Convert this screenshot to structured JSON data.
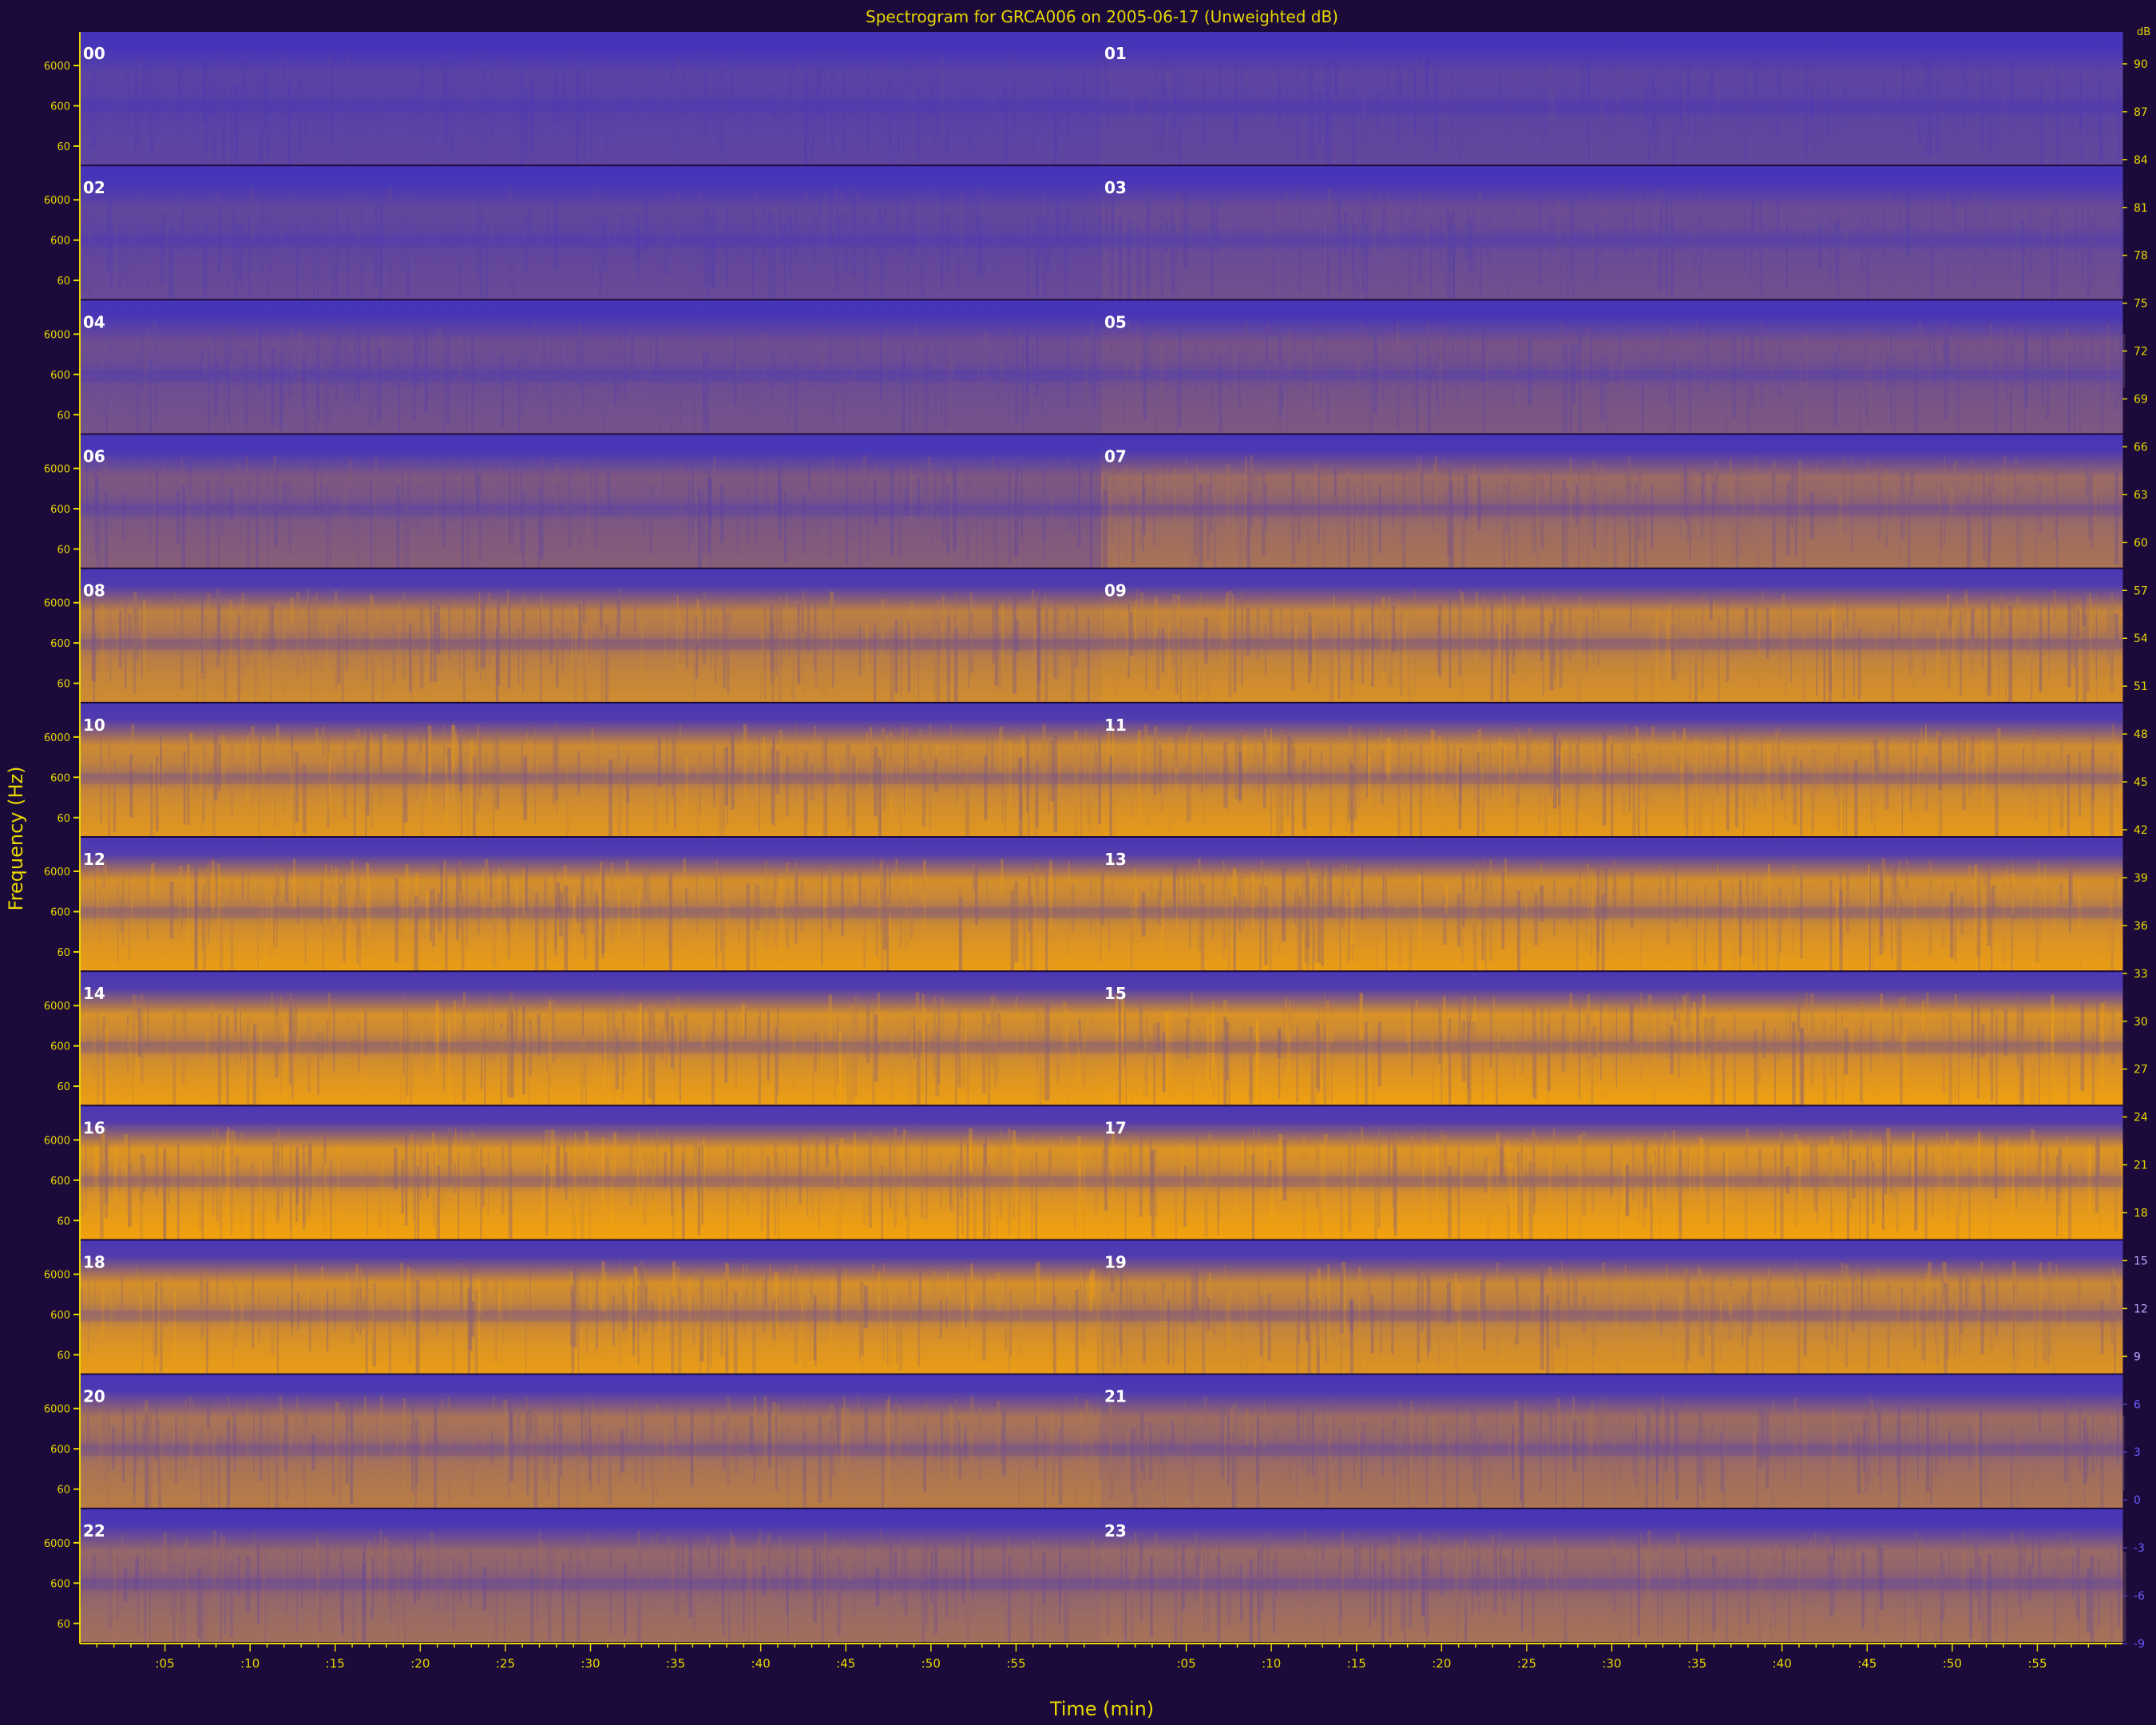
{
  "chart_data": {
    "type": "heatmap",
    "title": "Spectrogram for GRCA006 on 2005-06-17 (Unweighted dB)",
    "xlabel": "Time (min)",
    "ylabel": "Frequency (Hz)",
    "colorbar_label": "dB",
    "panel_labels": [
      "00",
      "01",
      "02",
      "03",
      "04",
      "05",
      "06",
      "07",
      "08",
      "09",
      "10",
      "11",
      "12",
      "13",
      "14",
      "15",
      "16",
      "17",
      "18",
      "19",
      "20",
      "21",
      "22",
      "23"
    ],
    "y_tick_labels": [
      "6000",
      "600",
      "60"
    ],
    "x_tick_labels": [
      ":05",
      ":10",
      ":15",
      ":20",
      ":25",
      ":30",
      ":35",
      ":40",
      ":45",
      ":50",
      ":55"
    ],
    "colorbar_ticks": [
      90,
      87,
      84,
      81,
      78,
      75,
      72,
      69,
      66,
      63,
      60,
      57,
      54,
      51,
      48,
      45,
      42,
      39,
      36,
      33,
      30,
      27,
      24,
      21,
      18,
      15,
      12,
      9,
      6,
      3,
      0,
      -3,
      -6,
      -9
    ],
    "colorbar_range": [
      -9,
      92
    ],
    "rows": 12,
    "hours_per_row": 2,
    "minutes_per_hour": 60,
    "hour_intensity": [
      0.12,
      0.14,
      0.16,
      0.2,
      0.22,
      0.26,
      0.3,
      0.45,
      0.62,
      0.66,
      0.7,
      0.72,
      0.74,
      0.74,
      0.75,
      0.76,
      0.78,
      0.78,
      0.74,
      0.68,
      0.52,
      0.46,
      0.42,
      0.44
    ],
    "colors": {
      "background": "#1b0a3a",
      "low": "#4433bb",
      "high": "#ffaa00",
      "title": "#e8d800",
      "axis": "#e8d800",
      "panel_label": "#ffffff"
    }
  }
}
